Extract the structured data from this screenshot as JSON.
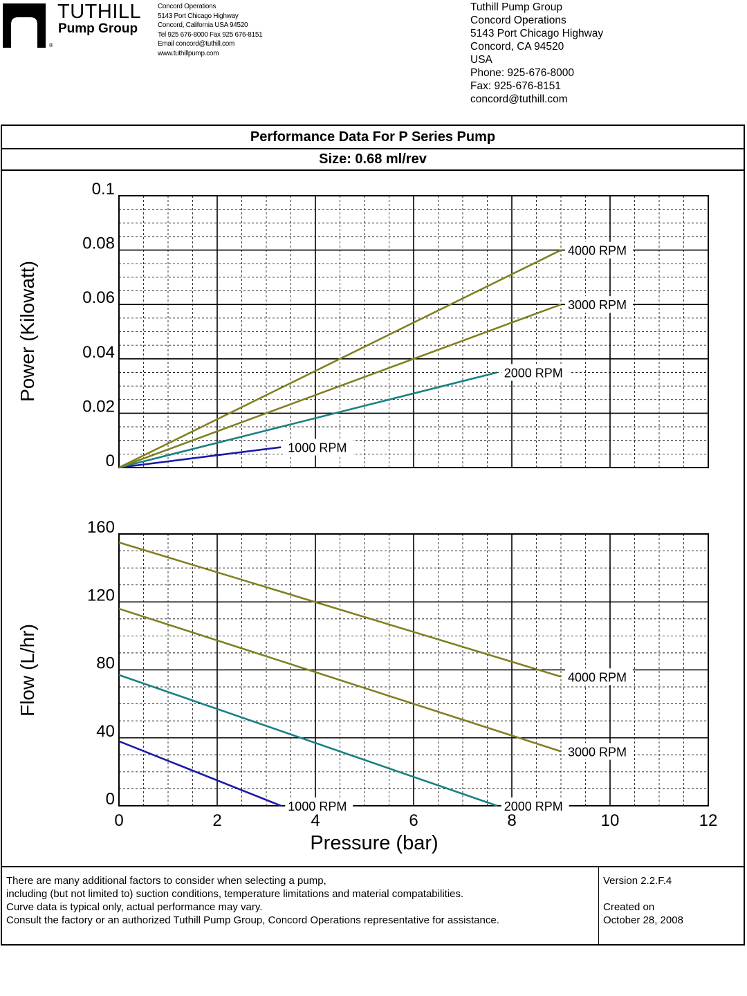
{
  "header": {
    "brand_name": "TUTHILL",
    "brand_sub": "Pump Group",
    "reg_mark": "®",
    "small_address": [
      "Concord Operations",
      "5143 Port Chicago Highway",
      "Concord, California USA 94520",
      "Tel 925 676-8000  Fax 925 676-8151",
      "Email  concord@tuthill.com",
      "www.tuthillpump.com"
    ],
    "right_address": [
      "Tuthill Pump Group",
      "Concord Operations",
      "5143 Port Chicago Highway",
      "Concord, CA  94520",
      "USA",
      "Phone: 925-676-8000",
      "Fax: 925-676-8151",
      "concord@tuthill.com"
    ]
  },
  "title": "Performance Data For P Series Pump",
  "size_label": "Size: 0.68 ml/rev",
  "colors": {
    "rpm_1000": "#1a1aaa",
    "rpm_2000": "#1a8080",
    "rpm_3000": "#808020",
    "rpm_4000": "#808020",
    "grid": "#000000"
  },
  "chart_data": [
    {
      "type": "line",
      "ylabel": "Power (Kilowatt)",
      "xlabel": "",
      "xlim": [
        0,
        12
      ],
      "ylim": [
        0,
        0.1
      ],
      "x_ticks": [],
      "y_ticks": [
        "0",
        "0.02",
        "0.04",
        "0.06",
        "0.08",
        "0.1"
      ],
      "grid": true,
      "series": [
        {
          "name": "1000 RPM",
          "color_key": "rpm_1000",
          "points": [
            [
              0,
              0
            ],
            [
              3.3,
              0.0075
            ]
          ]
        },
        {
          "name": "2000 RPM",
          "color_key": "rpm_2000",
          "points": [
            [
              0,
              0
            ],
            [
              7.7,
              0.035
            ]
          ]
        },
        {
          "name": "3000 RPM",
          "color_key": "rpm_3000",
          "points": [
            [
              0,
              0
            ],
            [
              9,
              0.06
            ]
          ]
        },
        {
          "name": "4000 RPM",
          "color_key": "rpm_4000",
          "points": [
            [
              0,
              0
            ],
            [
              9,
              0.08
            ]
          ]
        }
      ]
    },
    {
      "type": "line",
      "ylabel": "Flow (L/hr)",
      "xlabel": "Pressure (bar)",
      "xlim": [
        0,
        12
      ],
      "ylim": [
        0,
        160
      ],
      "x_ticks": [
        "0",
        "2",
        "4",
        "6",
        "8",
        "10",
        "12"
      ],
      "y_ticks": [
        "0",
        "40",
        "80",
        "120",
        "160"
      ],
      "grid": true,
      "series": [
        {
          "name": "1000 RPM",
          "color_key": "rpm_1000",
          "points": [
            [
              0,
              38
            ],
            [
              3.3,
              0
            ]
          ]
        },
        {
          "name": "2000 RPM",
          "color_key": "rpm_2000",
          "points": [
            [
              0,
              77
            ],
            [
              7.7,
              0
            ]
          ]
        },
        {
          "name": "3000 RPM",
          "color_key": "rpm_3000",
          "points": [
            [
              0,
              116
            ],
            [
              9,
              32
            ]
          ]
        },
        {
          "name": "4000 RPM",
          "color_key": "rpm_4000",
          "points": [
            [
              0,
              155
            ],
            [
              9,
              76
            ]
          ]
        }
      ]
    }
  ],
  "footer": {
    "notes": [
      "There are many additional factors to consider when selecting a pump,",
      "including (but not limited to) suction conditions, temperature limitations and material compatabilities.",
      "Curve data is typical only, actual performance may vary.",
      "Consult the factory or an authorized Tuthill Pump Group, Concord Operations representative for assistance."
    ],
    "version": "Version 2.2.F.4",
    "created_label": "Created on",
    "created_date": "October 28, 2008"
  }
}
